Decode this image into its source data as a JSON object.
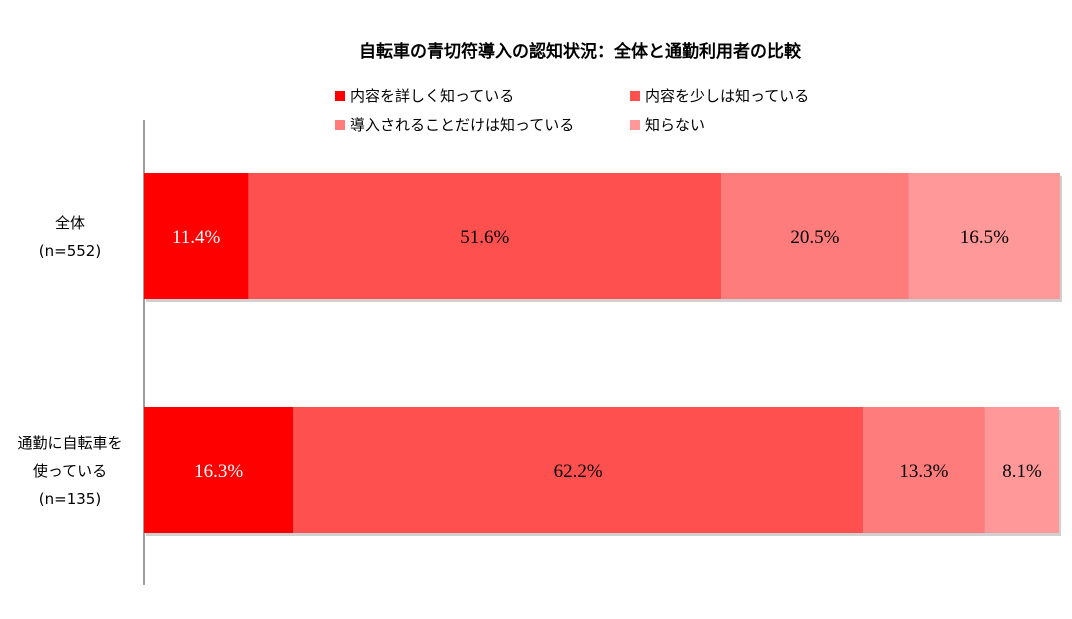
{
  "chart_data": {
    "type": "bar",
    "orientation": "horizontal",
    "stacked": true,
    "title": "自転車の青切符導入の認知状況：全体と通勤利用者の比較",
    "categories": [
      {
        "lines": [
          "全体",
          "(n=552)"
        ]
      },
      {
        "lines": [
          "通勤に自転車を",
          "使っている",
          "(n=135)"
        ]
      }
    ],
    "series": [
      {
        "name": "内容を詳しく知っている",
        "color": "#FF0000",
        "label_color": "#FFFFFF",
        "values": [
          11.4,
          16.3
        ],
        "labels": [
          "11.4%",
          "16.3%"
        ]
      },
      {
        "name": "内容を少しは知っている",
        "color": "#FF5050",
        "label_color": "#000000",
        "values": [
          51.6,
          62.2
        ],
        "labels": [
          "51.6%",
          "62.2%"
        ]
      },
      {
        "name": "導入されることだけは知っている",
        "color": "#FF7C7C",
        "label_color": "#000000",
        "values": [
          20.5,
          13.3
        ],
        "labels": [
          "20.5%",
          "13.3%"
        ]
      },
      {
        "name": "知らない",
        "color": "#FF9999",
        "label_color": "#000000",
        "values": [
          16.5,
          8.1
        ],
        "labels": [
          "16.5%",
          "8.1%"
        ]
      }
    ],
    "xlim": [
      0,
      100
    ],
    "legend_position": "top",
    "grid": false
  }
}
